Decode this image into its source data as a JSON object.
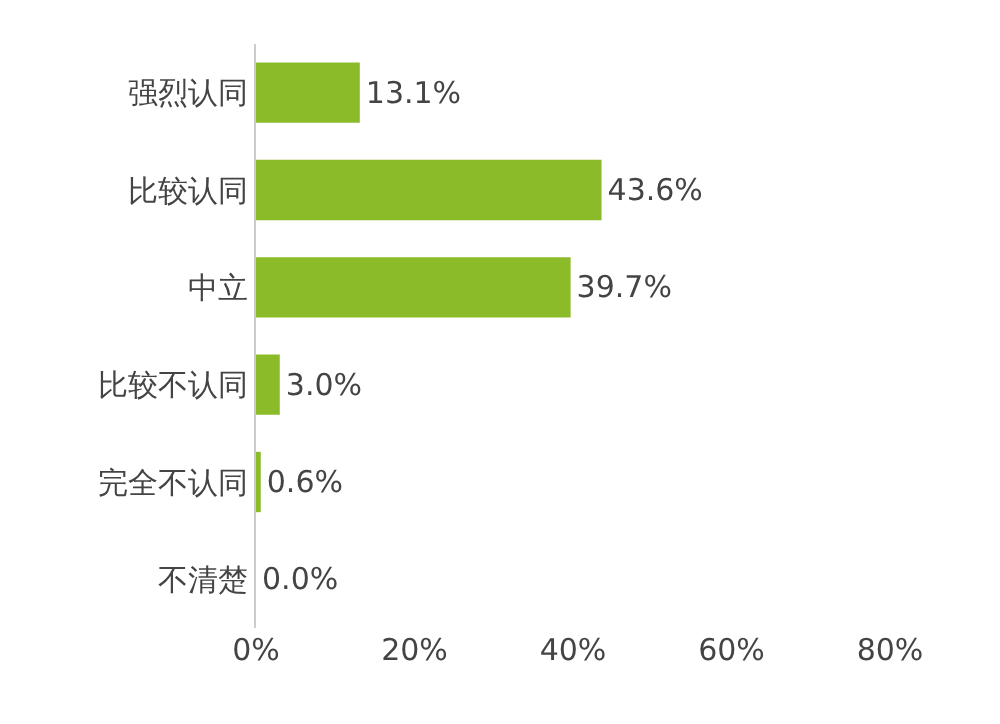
{
  "chart_data": {
    "type": "bar",
    "orientation": "horizontal",
    "categories": [
      "强烈认同",
      "比较认同",
      "中立",
      "比较不认同",
      "完全不认同",
      "不清楚"
    ],
    "values": [
      13.1,
      43.6,
      39.7,
      3.0,
      0.6,
      0.0
    ],
    "value_labels": [
      "13.1%",
      "43.6%",
      "39.7%",
      "3.0%",
      "0.6%",
      "0.0%"
    ],
    "color": "#8cbb2a",
    "xlim": [
      0,
      80
    ],
    "xticks": [
      {
        "value": 0,
        "label": "0%"
      },
      {
        "value": 20,
        "label": "20%"
      },
      {
        "value": 40,
        "label": "40%"
      },
      {
        "value": 60,
        "label": "60%"
      },
      {
        "value": 80,
        "label": "80%"
      }
    ],
    "grid": false
  }
}
